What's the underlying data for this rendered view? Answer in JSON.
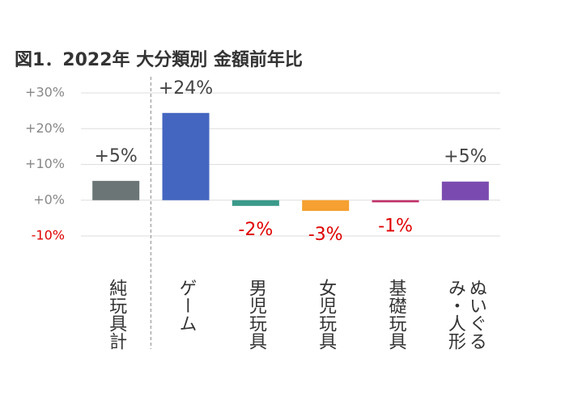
{
  "chart_data": {
    "type": "bar",
    "title": "図1．2022年 大分類別 金額前年比",
    "categories": [
      "純玩具計",
      "ゲーム",
      "男児玩具",
      "女児玩具",
      "基礎玩具",
      "ぬいぐるみ・人形"
    ],
    "values": [
      5.4,
      24.4,
      -1.6,
      -3.0,
      -0.6,
      5.2
    ],
    "value_labels": [
      "+5%",
      "+24%",
      "-2%",
      "-3%",
      "-1%",
      "+5%"
    ],
    "colors": [
      "#6b7575",
      "#4466c0",
      "#3a9a8a",
      "#f5a030",
      "#c0306a",
      "#7a4ab0"
    ],
    "ylim": [
      -10,
      30
    ],
    "yticks": [
      {
        "value": -10,
        "label": "-10%"
      },
      {
        "value": 0,
        "label": "+0%"
      },
      {
        "value": 10,
        "label": "+10%"
      },
      {
        "value": 20,
        "label": "+20%"
      },
      {
        "value": 30,
        "label": "+30%"
      }
    ],
    "grid": true,
    "positive_label_color": "#444444",
    "negative_label_color": "#e00000"
  }
}
